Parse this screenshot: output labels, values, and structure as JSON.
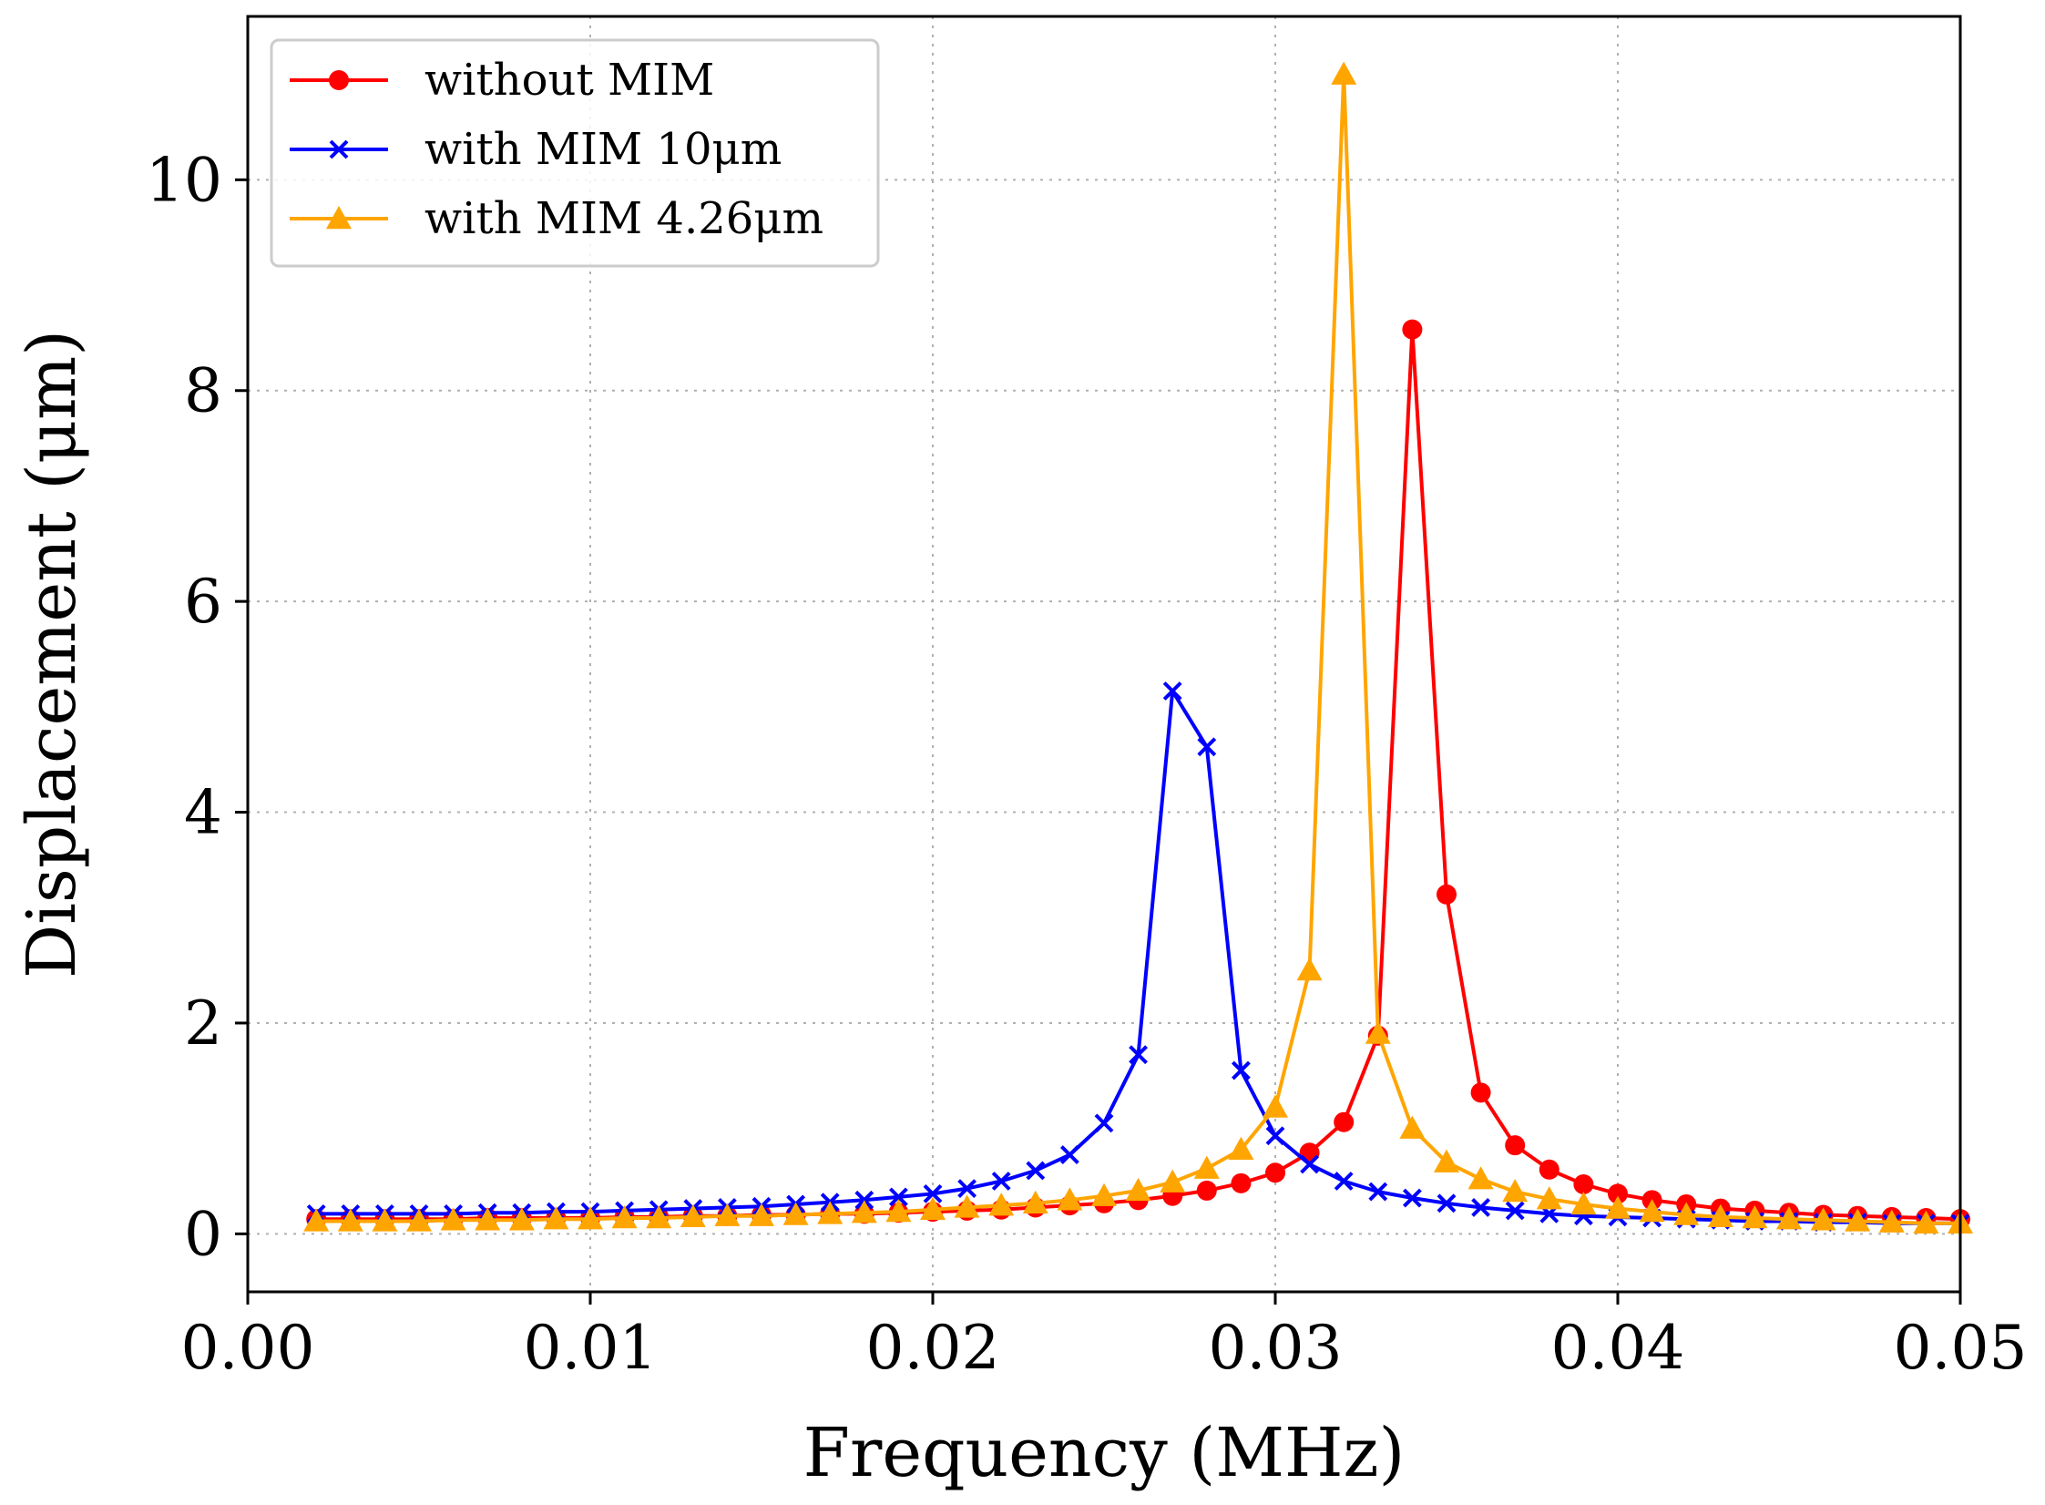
{
  "chart_data": {
    "type": "line",
    "title": "",
    "xlabel": "Frequency (MHz)",
    "ylabel": "Displacement (μm)",
    "xlim": [
      0.0,
      0.05
    ],
    "ylim": [
      -0.55,
      11.55
    ],
    "xticks": [
      0.0,
      0.01,
      0.02,
      0.03,
      0.04,
      0.05
    ],
    "xtick_labels": [
      "0.00",
      "0.01",
      "0.02",
      "0.03",
      "0.04",
      "0.05"
    ],
    "yticks": [
      0,
      2,
      4,
      6,
      8,
      10
    ],
    "ytick_labels": [
      "0",
      "2",
      "4",
      "6",
      "8",
      "10"
    ],
    "grid": true,
    "legend_position": "top-left",
    "x": [
      0.002,
      0.003,
      0.004,
      0.005,
      0.006,
      0.007,
      0.008,
      0.009,
      0.01,
      0.011,
      0.012,
      0.013,
      0.014,
      0.015,
      0.016,
      0.017,
      0.018,
      0.019,
      0.02,
      0.021,
      0.022,
      0.023,
      0.024,
      0.025,
      0.026,
      0.027,
      0.028,
      0.029,
      0.03,
      0.031,
      0.032,
      0.033,
      0.034,
      0.035,
      0.036,
      0.037,
      0.038,
      0.039,
      0.04,
      0.041,
      0.042,
      0.043,
      0.044,
      0.045,
      0.046,
      0.047,
      0.048,
      0.049,
      0.05
    ],
    "series": [
      {
        "name": "without MIM",
        "color": "#ff0000",
        "marker": "circle",
        "values": [
          0.14,
          0.14,
          0.14,
          0.14,
          0.14,
          0.15,
          0.15,
          0.15,
          0.15,
          0.16,
          0.16,
          0.17,
          0.17,
          0.18,
          0.18,
          0.19,
          0.19,
          0.2,
          0.21,
          0.22,
          0.23,
          0.25,
          0.27,
          0.29,
          0.32,
          0.36,
          0.41,
          0.48,
          0.58,
          0.77,
          1.06,
          1.88,
          8.58,
          3.22,
          1.34,
          0.84,
          0.61,
          0.47,
          0.38,
          0.32,
          0.28,
          0.24,
          0.22,
          0.2,
          0.18,
          0.17,
          0.16,
          0.15,
          0.14
        ]
      },
      {
        "name": "with MIM 10μm",
        "color": "#0000ff",
        "marker": "x",
        "values": [
          0.19,
          0.19,
          0.19,
          0.19,
          0.19,
          0.2,
          0.2,
          0.21,
          0.21,
          0.22,
          0.23,
          0.24,
          0.25,
          0.26,
          0.28,
          0.3,
          0.32,
          0.35,
          0.38,
          0.43,
          0.5,
          0.6,
          0.75,
          1.05,
          1.7,
          5.15,
          4.62,
          1.55,
          0.93,
          0.66,
          0.5,
          0.4,
          0.34,
          0.29,
          0.25,
          0.22,
          0.19,
          0.17,
          0.16,
          0.15,
          0.14,
          0.13,
          0.12,
          0.12,
          0.11,
          0.11,
          0.1,
          0.1,
          0.1
        ]
      },
      {
        "name": "with MIM 4.26μm",
        "color": "#ffa500",
        "marker": "triangle",
        "values": [
          0.12,
          0.12,
          0.12,
          0.12,
          0.13,
          0.13,
          0.13,
          0.14,
          0.14,
          0.15,
          0.15,
          0.16,
          0.17,
          0.17,
          0.18,
          0.19,
          0.2,
          0.21,
          0.23,
          0.25,
          0.27,
          0.29,
          0.32,
          0.36,
          0.41,
          0.49,
          0.62,
          0.8,
          1.2,
          2.5,
          11.0,
          1.9,
          1.0,
          0.68,
          0.52,
          0.4,
          0.33,
          0.28,
          0.24,
          0.21,
          0.18,
          0.16,
          0.15,
          0.14,
          0.13,
          0.12,
          0.11,
          0.1,
          0.1
        ]
      }
    ]
  }
}
